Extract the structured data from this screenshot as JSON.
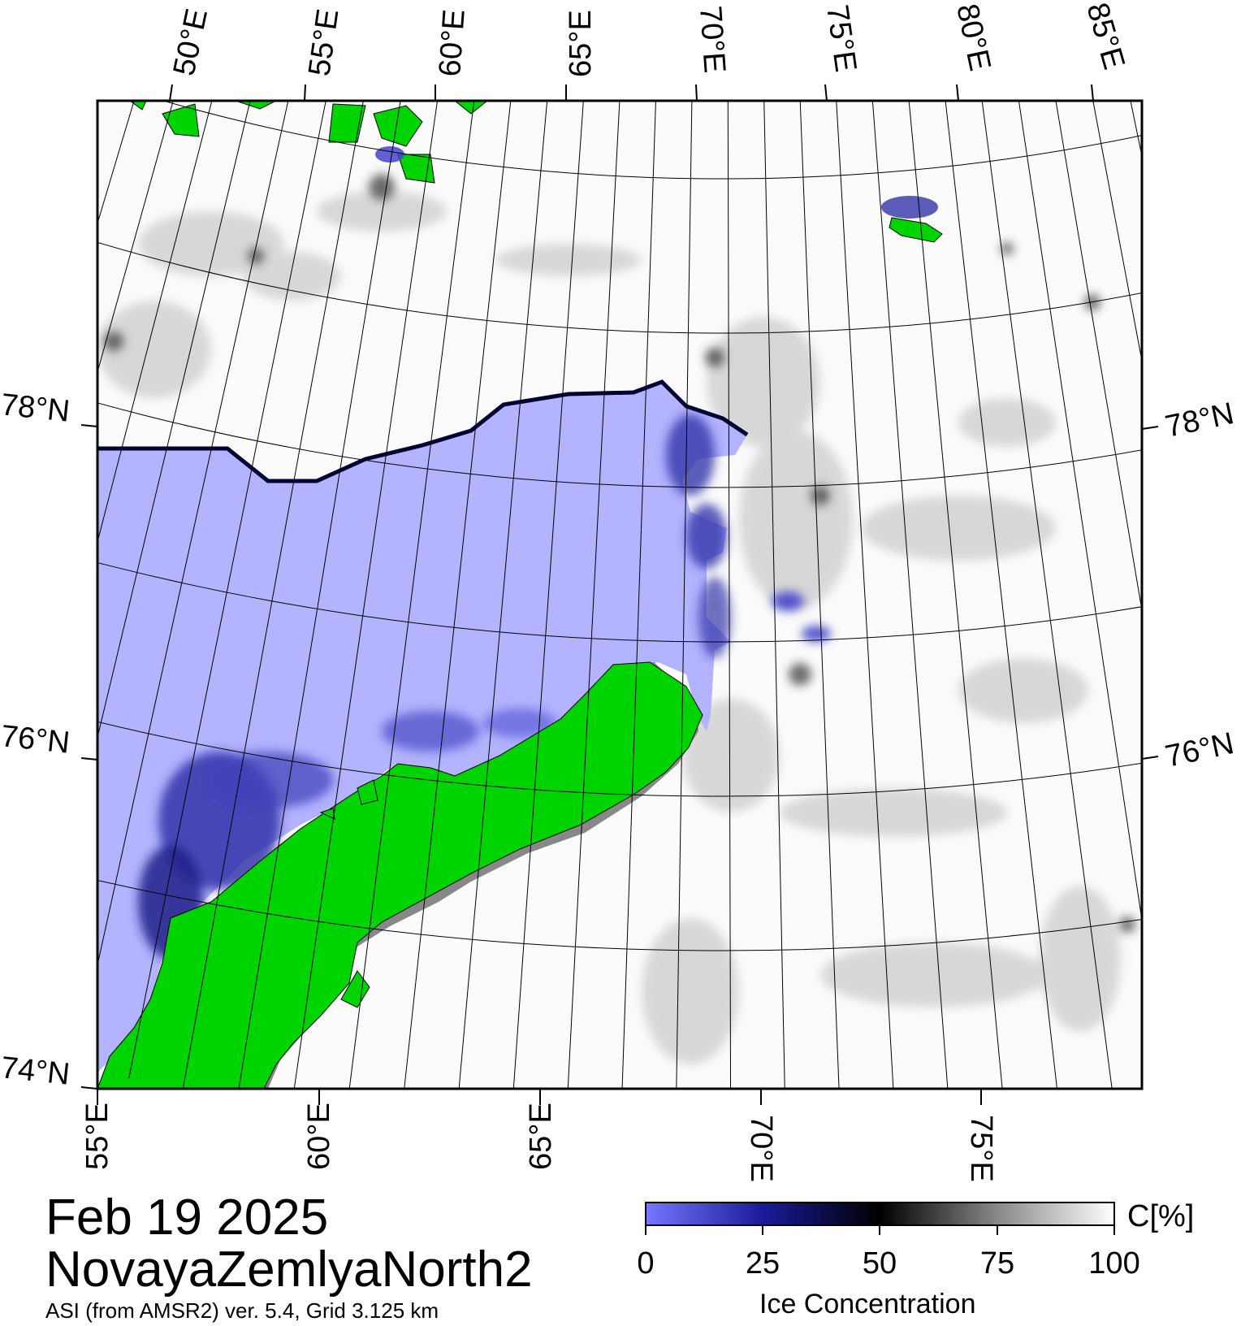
{
  "map": {
    "date": "Feb 19 2025",
    "region": "NovayaZemlyaNorth2",
    "product": "ASI (from AMSR2) ver. 5.4,  Grid 3.125 km",
    "top_lon_labels": [
      "50°E",
      "55°E",
      "60°E",
      "65°E",
      "70°E",
      "75°E",
      "80°E",
      "85°E"
    ],
    "bottom_lon_labels": [
      "55°E",
      "60°E",
      "65°E",
      "70°E",
      "75°E"
    ],
    "left_lat_labels": [
      "78°N",
      "76°N",
      "74°N"
    ],
    "right_lat_labels": [
      "78°N",
      "76°N"
    ],
    "colors": {
      "open_water": "#b3b3ff",
      "land": "#00d400",
      "land_mask": "#888888",
      "frame": "#000000"
    },
    "legend_entries": [
      "open-water",
      "land",
      "ice-concentration-shading"
    ]
  },
  "colorbar": {
    "title": "Ice Concentration",
    "unit": "C[%]",
    "ticks": [
      "0",
      "25",
      "50",
      "75",
      "100"
    ],
    "range": [
      0,
      100
    ],
    "stops": [
      "#7777ff",
      "#1a1a99",
      "#000000",
      "#888888",
      "#ffffff"
    ]
  }
}
